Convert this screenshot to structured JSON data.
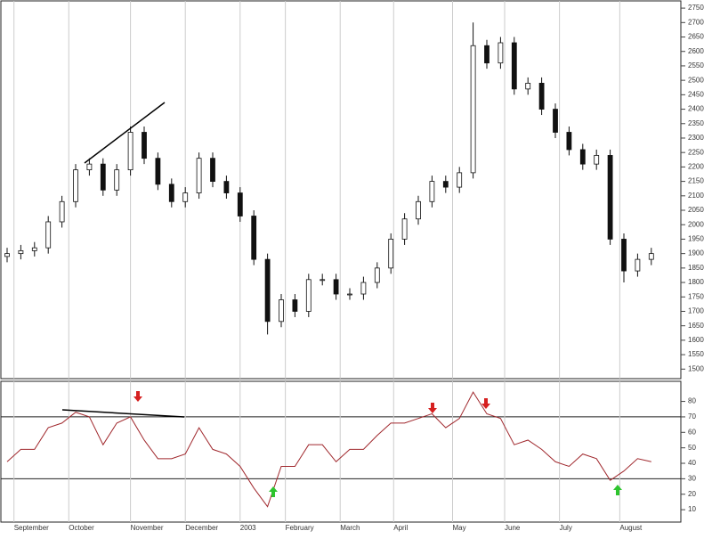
{
  "chart_data": [
    {
      "type": "candlestick",
      "open": [
        1890,
        1900,
        1910,
        1920,
        2010,
        2080,
        2190,
        2210,
        2120,
        2190,
        2320,
        2230,
        2140,
        2080,
        2110,
        2230,
        2150,
        2110,
        2030,
        1880,
        1665,
        1740,
        1700,
        1810,
        1810,
        1760,
        1760,
        1800,
        1850,
        1950,
        2020,
        2080,
        2150,
        2130,
        2180,
        2620,
        2560,
        2630,
        2470,
        2490,
        2400,
        2320,
        2260,
        2210,
        2240,
        1950,
        1840,
        1880
      ],
      "high": [
        1920,
        1930,
        1940,
        2030,
        2100,
        2210,
        2230,
        2230,
        2210,
        2340,
        2340,
        2250,
        2160,
        2130,
        2250,
        2250,
        2170,
        2130,
        2050,
        1900,
        1760,
        1760,
        1830,
        1830,
        1830,
        1780,
        1820,
        1870,
        1970,
        2040,
        2100,
        2170,
        2170,
        2200,
        2700,
        2640,
        2650,
        2650,
        2510,
        2510,
        2420,
        2340,
        2280,
        2260,
        2260,
        1970,
        1900,
        1920
      ],
      "low": [
        1870,
        1880,
        1890,
        1900,
        1990,
        2060,
        2170,
        2100,
        2100,
        2170,
        2210,
        2120,
        2060,
        2060,
        2090,
        2130,
        2090,
        2010,
        1860,
        1620,
        1645,
        1680,
        1680,
        1790,
        1740,
        1740,
        1740,
        1780,
        1830,
        1930,
        2000,
        2060,
        2110,
        2110,
        2160,
        2540,
        2540,
        2450,
        2450,
        2380,
        2300,
        2240,
        2190,
        2190,
        1930,
        1800,
        1820,
        1860
      ],
      "close": [
        1900,
        1910,
        1920,
        2010,
        2080,
        2190,
        2210,
        2120,
        2190,
        2320,
        2230,
        2140,
        2080,
        2110,
        2230,
        2150,
        2110,
        2030,
        1880,
        1665,
        1740,
        1700,
        1810,
        1810,
        1760,
        1760,
        1800,
        1850,
        1950,
        2020,
        2080,
        2150,
        2130,
        2180,
        2620,
        2560,
        2630,
        2470,
        2490,
        2400,
        2320,
        2260,
        2210,
        2240,
        1950,
        1840,
        1880,
        1900
      ],
      "ylim": [
        1467,
        2775
      ],
      "yticks": [
        1500,
        1550,
        1600,
        1650,
        1700,
        1750,
        1800,
        1850,
        1900,
        1950,
        2000,
        2050,
        2100,
        2150,
        2200,
        2250,
        2300,
        2350,
        2400,
        2450,
        2500,
        2550,
        2600,
        2650,
        2700,
        2750
      ],
      "grid": true
    },
    {
      "type": "line",
      "values": [
        41,
        49,
        49,
        63,
        66,
        73,
        70,
        52,
        66,
        70,
        55,
        43,
        43,
        46,
        63,
        49,
        46,
        38,
        24,
        12,
        38,
        38,
        52,
        52,
        41,
        49,
        49,
        58,
        66,
        66,
        69,
        72,
        63,
        69,
        86,
        72,
        69,
        52,
        55,
        49,
        41,
        38,
        46,
        43,
        29,
        35,
        43,
        41
      ],
      "color": "#a0282d",
      "ylim": [
        2,
        93
      ],
      "yticks": [
        10,
        20,
        30,
        40,
        50,
        60,
        70,
        80
      ],
      "hlines": [
        70,
        30
      ],
      "xticks": [
        {
          "value": 0.5,
          "label": "September"
        },
        {
          "value": 4.5,
          "label": "October"
        },
        {
          "value": 9,
          "label": "November"
        },
        {
          "value": 13,
          "label": "December"
        },
        {
          "value": 17,
          "label": "2003"
        },
        {
          "value": 20.3,
          "label": "February"
        },
        {
          "value": 24.3,
          "label": "March"
        },
        {
          "value": 28.2,
          "label": "April"
        },
        {
          "value": 32.5,
          "label": "May"
        },
        {
          "value": 36.3,
          "label": "June"
        },
        {
          "value": 40.3,
          "label": "July"
        },
        {
          "value": 44.7,
          "label": "August"
        }
      ]
    }
  ]
}
